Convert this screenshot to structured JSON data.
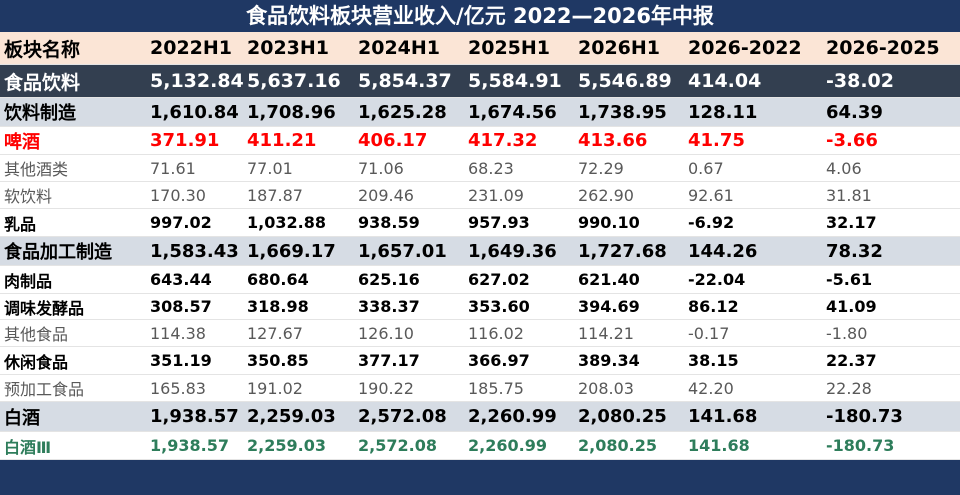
{
  "title": "食品饮料板块营业收入/亿元 2022—2026年中报",
  "table": {
    "header": [
      "板块名称",
      "2022H1",
      "2023H1",
      "2024H1",
      "2025H1",
      "2026H1",
      "2026-2022",
      "2026-2025"
    ],
    "rows": [
      [
        "食品饮料",
        "5,132.84",
        "5,637.16",
        "5,854.37",
        "5,584.91",
        "5,546.89",
        "414.04",
        "-38.02"
      ],
      [
        "饮料制造",
        "1,610.84",
        "1,708.96",
        "1,625.28",
        "1,674.56",
        "1,738.95",
        "128.11",
        "64.39"
      ],
      [
        "啤酒",
        "371.91",
        "411.21",
        "406.17",
        "417.32",
        "413.66",
        "41.75",
        "-3.66"
      ],
      [
        "其他酒类",
        "71.61",
        "77.01",
        "71.06",
        "68.23",
        "72.29",
        "0.67",
        "4.06"
      ],
      [
        "软饮料",
        "170.30",
        "187.87",
        "209.46",
        "231.09",
        "262.90",
        "92.61",
        "31.81"
      ],
      [
        "乳品",
        "997.02",
        "1,032.88",
        "938.59",
        "957.93",
        "990.10",
        "-6.92",
        "32.17"
      ],
      [
        "食品加工制造",
        "1,583.43",
        "1,669.17",
        "1,657.01",
        "1,649.36",
        "1,727.68",
        "144.26",
        "78.32"
      ],
      [
        "肉制品",
        "643.44",
        "680.64",
        "625.16",
        "627.02",
        "621.40",
        "-22.04",
        "-5.61"
      ],
      [
        "调味发酵品",
        "308.57",
        "318.98",
        "338.37",
        "353.60",
        "394.69",
        "86.12",
        "41.09"
      ],
      [
        "其他食品",
        "114.38",
        "127.67",
        "126.10",
        "116.02",
        "114.21",
        "-0.17",
        "-1.80"
      ],
      [
        "休闲食品",
        "351.19",
        "350.85",
        "377.17",
        "366.97",
        "389.34",
        "38.15",
        "22.37"
      ],
      [
        "预加工食品",
        "165.83",
        "191.02",
        "190.22",
        "185.75",
        "208.03",
        "42.20",
        "22.28"
      ],
      [
        "白酒",
        "1,938.57",
        "2,259.03",
        "2,572.08",
        "2,260.99",
        "2,080.25",
        "141.68",
        "-180.73"
      ],
      [
        "白酒Ⅲ",
        "1,938.57",
        "2,259.03",
        "2,572.08",
        "2,260.99",
        "2,080.25",
        "141.68",
        "-180.73"
      ]
    ]
  }
}
